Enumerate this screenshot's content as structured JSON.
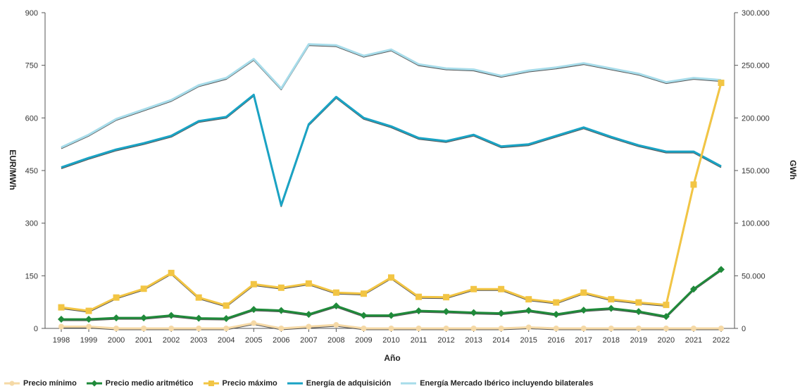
{
  "chart_data": {
    "type": "line",
    "x": [
      "1998",
      "1999",
      "2000",
      "2001",
      "2002",
      "2003",
      "2004",
      "2005",
      "2006",
      "2007",
      "2008",
      "2009",
      "2010",
      "2011",
      "2012",
      "2013",
      "2014",
      "2015",
      "2016",
      "2017",
      "2018",
      "2019",
      "2020",
      "2021",
      "2022"
    ],
    "xlabel": "Año",
    "ylabel": "EUR/MWh",
    "ylabel_right": "GWh",
    "ylim": [
      0,
      900
    ],
    "ylim_right": [
      0,
      300000
    ],
    "yticks": [
      "0",
      "150",
      "300",
      "450",
      "600",
      "750",
      "900"
    ],
    "yticks_right": [
      "0",
      "50.000",
      "100.000",
      "150.000",
      "200.000",
      "250.000",
      "300.000"
    ],
    "grid": false,
    "legend_position": "bottom",
    "series": [
      {
        "name": "Precio mínimo",
        "axis": "left",
        "color": "#f5d9a6",
        "marker": "circle",
        "values": [
          5,
          5,
          0,
          0,
          0,
          0,
          0,
          15,
          0,
          5,
          10,
          0,
          0,
          0,
          0,
          0,
          0,
          3,
          0,
          0,
          0,
          0,
          0,
          0,
          0
        ]
      },
      {
        "name": "Precio medio aritmético",
        "axis": "left",
        "color": "#1f8a3a",
        "marker": "diamond",
        "values": [
          26,
          26,
          30,
          30,
          37,
          29,
          28,
          54,
          51,
          40,
          64,
          37,
          37,
          50,
          48,
          45,
          43,
          51,
          40,
          52,
          57,
          48,
          34,
          112,
          168
        ]
      },
      {
        "name": "Precio máximo",
        "axis": "left",
        "color": "#f2c544",
        "marker": "square",
        "values": [
          60,
          50,
          88,
          113,
          158,
          88,
          65,
          126,
          116,
          128,
          102,
          99,
          145,
          90,
          89,
          112,
          112,
          83,
          74,
          102,
          83,
          74,
          67,
          410,
          700
        ]
      },
      {
        "name": "Energía de adquisición",
        "axis": "right",
        "color": "#1aa3c4",
        "marker": "none",
        "values": [
          153000,
          162000,
          170000,
          176000,
          183000,
          197000,
          201000,
          222000,
          117000,
          194000,
          220000,
          200000,
          192000,
          181000,
          178000,
          184000,
          173000,
          175000,
          183000,
          191000,
          182000,
          174000,
          168000,
          168000,
          154000
        ]
      },
      {
        "name": "Energía Mercado Ibérico incluyendo bilaterales",
        "axis": "right",
        "color": "#a7dcea",
        "marker": "none",
        "values": [
          172000,
          184000,
          199000,
          208000,
          217000,
          231000,
          238000,
          256000,
          228000,
          270000,
          269000,
          259000,
          265000,
          251000,
          247000,
          246000,
          240000,
          245000,
          248000,
          252000,
          247000,
          242000,
          234000,
          238000,
          236000
        ]
      }
    ]
  }
}
